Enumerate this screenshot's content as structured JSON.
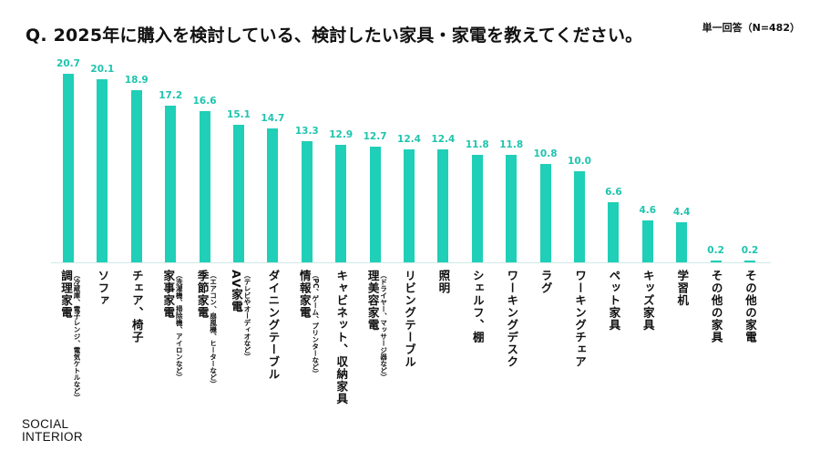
{
  "title": "Q. 2025年に購入を検討している、検討したい家具・家電を教えてください。",
  "note": "単一回答（N=482）",
  "logo": {
    "line1": "SOCIAL",
    "line2": "INTERIOR"
  },
  "colors": {
    "bar": "#1fcfb7",
    "value_label": "#1fc4ae"
  },
  "chart_data": {
    "type": "bar",
    "title": "Q. 2025年に購入を検討している、検討したい家具・家電を教えてください。",
    "ylim": [
      0,
      22
    ],
    "grid": false,
    "categories": [
      {
        "label": "調理家電",
        "sub": "（冷蔵庫、電子レンジ、電気ケトルなど）"
      },
      {
        "label": "ソファ",
        "sub": ""
      },
      {
        "label": "チェア、椅子",
        "sub": ""
      },
      {
        "label": "家事家電",
        "sub": "（洗濯機、掃除機、アイロンなど）"
      },
      {
        "label": "季節家電",
        "sub": "（エアコン、扇風機、ヒーターなど）"
      },
      {
        "label": "AV家電",
        "sub": "（テレビやオーディオなど）"
      },
      {
        "label": "ダイニングテーブル",
        "sub": ""
      },
      {
        "label": "情報家電",
        "sub": "（PC、ゲーム、プリンターなど）"
      },
      {
        "label": "キャビネット、収納家具",
        "sub": ""
      },
      {
        "label": "理美容家電",
        "sub": "（ドライヤー、マッサージ器など）"
      },
      {
        "label": "リビングテーブル",
        "sub": ""
      },
      {
        "label": "照明",
        "sub": ""
      },
      {
        "label": "シェルフ、棚",
        "sub": ""
      },
      {
        "label": "ワーキングデスク",
        "sub": ""
      },
      {
        "label": "ラグ",
        "sub": ""
      },
      {
        "label": "ワーキングチェア",
        "sub": ""
      },
      {
        "label": "ペット家具",
        "sub": ""
      },
      {
        "label": "キッズ家具",
        "sub": ""
      },
      {
        "label": "学習机",
        "sub": ""
      },
      {
        "label": "その他の家具",
        "sub": ""
      },
      {
        "label": "その他の家電",
        "sub": ""
      }
    ],
    "values": [
      "20.7",
      "20.1",
      "18.9",
      "17.2",
      "16.6",
      "15.1",
      "14.7",
      "13.3",
      "12.9",
      "12.7",
      "12.4",
      "12.4",
      "11.8",
      "11.8",
      "10.8",
      "10.0",
      "6.6",
      "4.6",
      "4.4",
      "0.2",
      "0.2"
    ]
  }
}
